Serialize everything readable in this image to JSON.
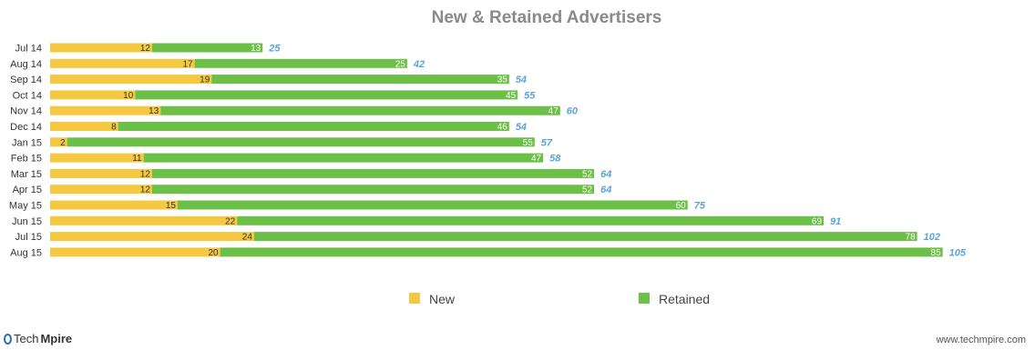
{
  "colors": {
    "new": "#f5c842",
    "retained": "#6cbf47",
    "total": "#5ba4d9",
    "title": "#8a8a8a"
  },
  "chart_data": {
    "type": "bar",
    "orientation": "horizontal",
    "stacked": true,
    "title": "New & Retained Advertisers",
    "categories": [
      "Jul 14",
      "Aug 14",
      "Sep 14",
      "Oct 14",
      "Nov 14",
      "Dec 14",
      "Jan 15",
      "Feb 15",
      "Mar 15",
      "Apr 15",
      "May 15",
      "Jun 15",
      "Jul 15",
      "Aug 15"
    ],
    "series": [
      {
        "name": "New",
        "values": [
          12,
          17,
          19,
          10,
          13,
          8,
          2,
          11,
          12,
          12,
          15,
          22,
          24,
          20
        ]
      },
      {
        "name": "Retained",
        "values": [
          13,
          25,
          35,
          45,
          47,
          46,
          55,
          47,
          52,
          52,
          60,
          69,
          78,
          85
        ]
      }
    ],
    "totals": [
      25,
      42,
      54,
      55,
      60,
      54,
      57,
      58,
      64,
      64,
      75,
      91,
      102,
      105
    ],
    "xlim": [
      0,
      105
    ],
    "grid": false,
    "legend_position": "bottom"
  },
  "footer": {
    "brand_light": "Tech",
    "brand_bold": "Mpire",
    "website": "www.techmpire.com"
  }
}
